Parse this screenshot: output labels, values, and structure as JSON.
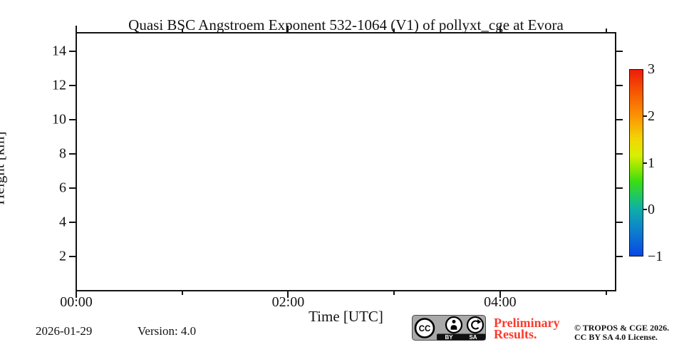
{
  "title": "Quasi BSC Angstroem Exponent 532-1064 (V1) of pollyxt_cge at Evora",
  "chart_data": {
    "type": "heatmap",
    "title": "Quasi BSC Angstroem Exponent 532-1064 (V1) of pollyxt_cge at Evora",
    "xlabel": "Time [UTC]",
    "ylabel": "Height [km]",
    "x_range_hours": [
      0,
      5.09
    ],
    "x_major_ticks": [
      {
        "value": 0,
        "label": "00:00"
      },
      {
        "value": 2,
        "label": "02:00"
      },
      {
        "value": 4,
        "label": "04:00"
      }
    ],
    "x_minor_ticks": [
      1,
      3,
      5
    ],
    "y_range_km": [
      0,
      15.08
    ],
    "y_major_ticks": [
      {
        "value": 2,
        "label": "2"
      },
      {
        "value": 4,
        "label": "4"
      },
      {
        "value": 6,
        "label": "6"
      },
      {
        "value": 8,
        "label": "8"
      },
      {
        "value": 10,
        "label": "10"
      },
      {
        "value": 12,
        "label": "12"
      },
      {
        "value": 14,
        "label": "14"
      }
    ],
    "grid": false,
    "values": [],
    "colorbar": {
      "range": [
        -1,
        3
      ],
      "ticks": [
        {
          "value": 3,
          "label": "3"
        },
        {
          "value": 2,
          "label": "2"
        },
        {
          "value": 1,
          "label": "1"
        },
        {
          "value": 0,
          "label": "0"
        },
        {
          "value": -1,
          "label": "−1"
        }
      ],
      "tick_marks": [
        2,
        1,
        0
      ],
      "gradient_stops": [
        [
          "#ee1c0a",
          0
        ],
        [
          "#f65c03",
          13
        ],
        [
          "#fb9404",
          25
        ],
        [
          "#f3d405",
          37
        ],
        [
          "#d9ef02",
          46
        ],
        [
          "#8fe603",
          53
        ],
        [
          "#3bdd12",
          60
        ],
        [
          "#19c177",
          70
        ],
        [
          "#10adaa",
          75
        ],
        [
          "#0c82cc",
          86
        ],
        [
          "#0a47e4",
          100
        ]
      ]
    }
  },
  "footer": {
    "date": "2026-01-29",
    "version": "Version: 4.0",
    "badge": {
      "cc": "CC",
      "by": "BY",
      "sa": "SA"
    },
    "preliminary": {
      "line1": "Preliminary",
      "line2": "Results.",
      "color": "#fb3a2c"
    },
    "copyright": {
      "line1": "© TROPOS & CGE 2026.",
      "line2": "CC BY SA 4.0 License."
    }
  },
  "colors": {
    "axis": "#131313",
    "background": "#ffffff"
  }
}
